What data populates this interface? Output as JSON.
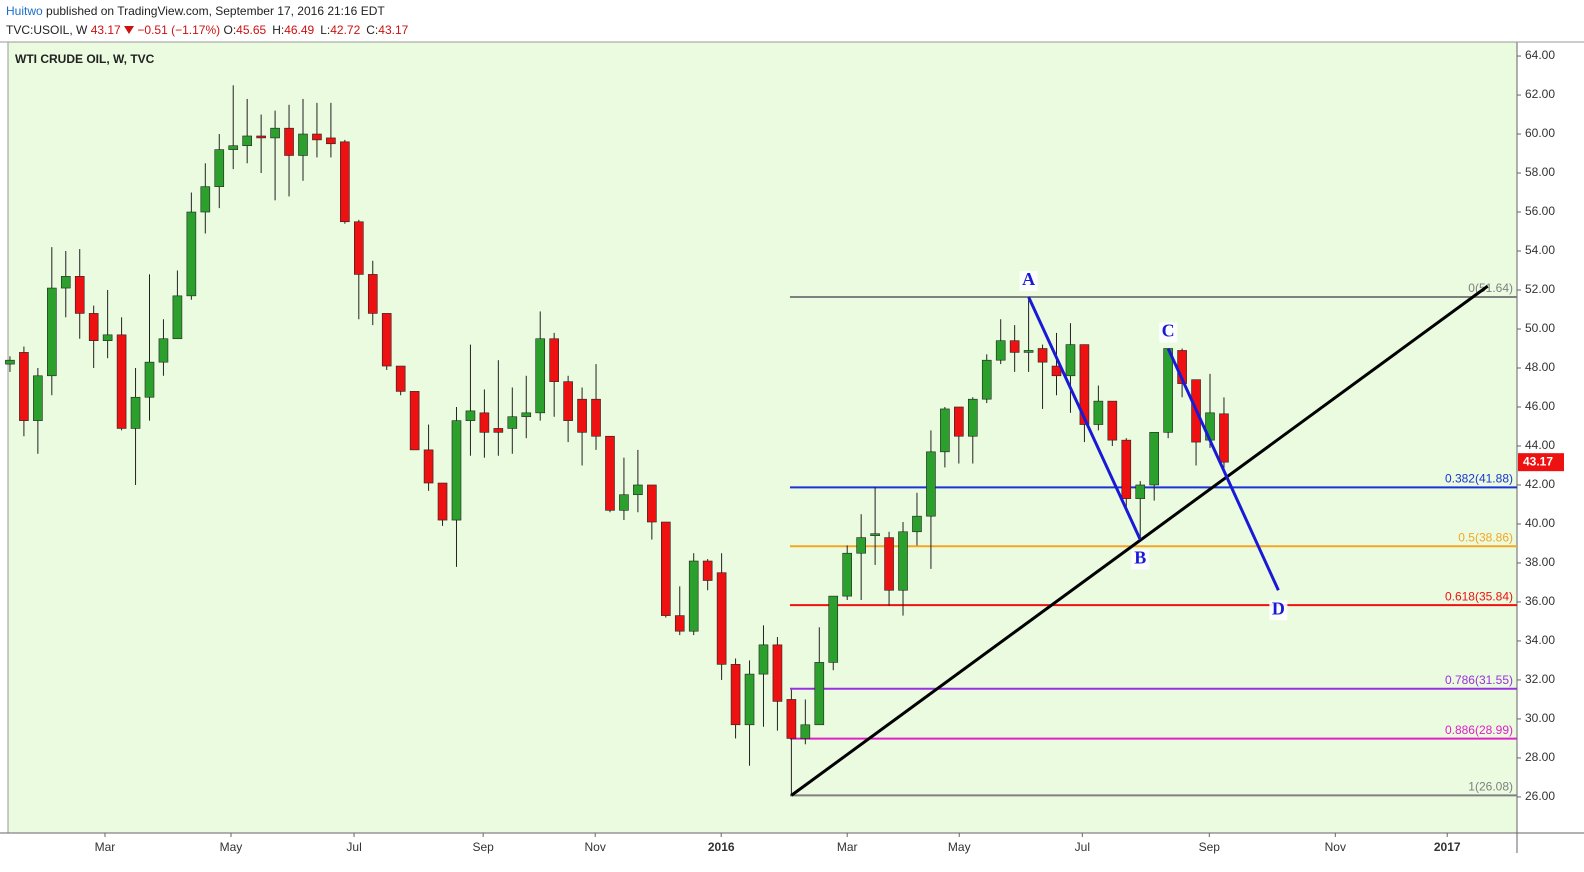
{
  "header": {
    "author": "Huitwo",
    "published": "published on TradingView.com, September 17, 2016 21:16 EDT",
    "symbol": "TVC:USOIL, W",
    "price": "43.17",
    "change": "−0.51 (−1.17%)",
    "ohlc": [
      {
        "label": "O:",
        "value": "45.65"
      },
      {
        "label": "H:",
        "value": "46.49"
      },
      {
        "label": "L:",
        "value": "42.72"
      },
      {
        "label": "C:",
        "value": "43.17"
      }
    ]
  },
  "chart_data": {
    "type": "candlestick",
    "title": "WTI CRUDE OIL, W, TVC",
    "up_color": "#2ca02c",
    "down_color": "#ee1111",
    "background": "#ebfbe0",
    "open": [
      48.2,
      48.8,
      45.3,
      47.6,
      52.1,
      52.7,
      50.8,
      49.4,
      49.7,
      44.9,
      46.5,
      48.3,
      49.5,
      51.7,
      56.0,
      57.3,
      59.2,
      59.4,
      59.9,
      59.8,
      60.3,
      58.9,
      60.0,
      59.8,
      59.6,
      55.5,
      52.8,
      50.8,
      48.1,
      46.8,
      43.8,
      42.1,
      40.2,
      45.3,
      45.7,
      44.9,
      44.9,
      45.5,
      45.7,
      49.5,
      47.3,
      46.4,
      46.4,
      44.5,
      40.7,
      41.5,
      42.0,
      40.1,
      35.3,
      34.5,
      38.1,
      37.5,
      32.8,
      29.7,
      32.3,
      33.8,
      31.0,
      29.0,
      29.7,
      32.9,
      36.3,
      38.5,
      39.4,
      39.3,
      36.6,
      39.6,
      40.4,
      43.7,
      46.0,
      44.5,
      46.4,
      48.4,
      49.4,
      48.8,
      49.0,
      48.1,
      47.6,
      49.2,
      45.1,
      46.3,
      44.3,
      41.3,
      42.0,
      44.7,
      48.9,
      47.4,
      44.3,
      45.65
    ],
    "high": [
      48.6,
      49.1,
      48.0,
      54.2,
      54.0,
      54.1,
      51.2,
      52.0,
      50.6,
      48.0,
      52.8,
      50.5,
      53.0,
      57.0,
      58.5,
      60.0,
      62.5,
      61.8,
      61.0,
      61.2,
      61.5,
      61.8,
      61.6,
      61.6,
      59.7,
      55.6,
      53.5,
      50.8,
      48.1,
      46.8,
      45.1,
      42.1,
      46.0,
      49.2,
      46.9,
      48.4,
      47.0,
      47.6,
      50.9,
      49.8,
      47.6,
      47.0,
      48.2,
      44.5,
      43.4,
      43.8,
      42.0,
      40.1,
      36.8,
      38.5,
      38.2,
      38.5,
      33.1,
      33.0,
      34.8,
      34.2,
      31.5,
      31.0,
      34.7,
      36.3,
      38.9,
      40.5,
      41.9,
      39.6,
      40.1,
      41.6,
      44.8,
      46.0,
      46.0,
      46.5,
      48.7,
      50.5,
      50.2,
      51.64,
      49.2,
      49.8,
      50.3,
      49.2,
      47.1,
      46.3,
      44.4,
      42.2,
      44.7,
      49.0,
      49.0,
      47.4,
      47.7,
      46.49
    ],
    "low": [
      47.8,
      44.5,
      43.6,
      46.6,
      50.6,
      49.5,
      48.0,
      48.5,
      44.8,
      42.0,
      45.3,
      47.6,
      49.5,
      51.5,
      54.9,
      56.2,
      58.2,
      58.5,
      58.0,
      56.6,
      56.8,
      57.6,
      58.8,
      58.8,
      55.4,
      50.5,
      50.2,
      47.9,
      46.6,
      43.8,
      41.7,
      39.9,
      37.8,
      43.5,
      43.4,
      43.5,
      43.6,
      44.4,
      45.3,
      45.5,
      44.2,
      43.0,
      43.8,
      40.6,
      40.2,
      40.6,
      39.2,
      35.2,
      34.3,
      34.3,
      36.6,
      32.0,
      29.0,
      27.6,
      29.6,
      29.4,
      26.08,
      28.7,
      29.7,
      32.5,
      36.1,
      36.1,
      37.9,
      35.8,
      35.3,
      38.9,
      37.7,
      42.9,
      43.1,
      43.1,
      46.2,
      48.2,
      47.8,
      47.8,
      45.9,
      46.6,
      45.7,
      44.2,
      44.8,
      44.0,
      40.8,
      39.2,
      41.2,
      44.4,
      46.5,
      43.0,
      43.9,
      42.72
    ],
    "close": [
      48.4,
      45.3,
      47.6,
      52.1,
      52.7,
      50.8,
      49.4,
      49.7,
      44.9,
      46.5,
      48.3,
      49.5,
      51.7,
      56.0,
      57.3,
      59.2,
      59.4,
      59.9,
      59.8,
      60.3,
      58.9,
      60.0,
      59.7,
      59.5,
      55.5,
      52.8,
      50.8,
      48.1,
      46.8,
      43.8,
      42.1,
      40.2,
      45.3,
      45.8,
      44.7,
      44.7,
      45.5,
      45.7,
      49.5,
      47.3,
      45.3,
      44.7,
      44.5,
      40.7,
      41.5,
      42.0,
      40.1,
      35.3,
      34.5,
      38.1,
      37.1,
      32.8,
      29.7,
      32.3,
      33.8,
      30.9,
      29.0,
      29.7,
      32.9,
      36.3,
      38.5,
      39.3,
      39.5,
      36.6,
      39.6,
      40.4,
      43.7,
      45.9,
      44.5,
      46.4,
      48.4,
      49.4,
      48.8,
      48.9,
      48.3,
      47.6,
      49.2,
      45.1,
      46.3,
      44.3,
      41.3,
      42.0,
      44.7,
      49.0,
      47.2,
      44.2,
      45.7,
      43.17
    ],
    "xlim": [
      -0.14,
      108.0
    ],
    "ylim": [
      24.15,
      64.72
    ],
    "xticks": [
      {
        "value": 6.81,
        "label": "Mar"
      },
      {
        "value": 15.84,
        "label": "May"
      },
      {
        "value": 24.66,
        "label": "Jul"
      },
      {
        "value": 33.91,
        "label": "Sep"
      },
      {
        "value": 41.94,
        "label": "Nov"
      },
      {
        "value": 50.97,
        "label": "2016"
      },
      {
        "value": 60.0,
        "label": "Mar"
      },
      {
        "value": 68.03,
        "label": "May"
      },
      {
        "value": 76.85,
        "label": "Jul"
      },
      {
        "value": 85.95,
        "label": "Sep"
      },
      {
        "value": 94.98,
        "label": "Nov"
      },
      {
        "value": 103.0,
        "label": "2017"
      }
    ],
    "yticks": [
      {
        "value": 26,
        "label": "26.00"
      },
      {
        "value": 28,
        "label": "28.00"
      },
      {
        "value": 30,
        "label": "30.00"
      },
      {
        "value": 32,
        "label": "32.00"
      },
      {
        "value": 34,
        "label": "34.00"
      },
      {
        "value": 36,
        "label": "36.00"
      },
      {
        "value": 38,
        "label": "38.00"
      },
      {
        "value": 40,
        "label": "40.00"
      },
      {
        "value": 42,
        "label": "42.00"
      },
      {
        "value": 44,
        "label": "44.00"
      },
      {
        "value": 46,
        "label": "46.00"
      },
      {
        "value": 48,
        "label": "48.00"
      },
      {
        "value": 50,
        "label": "50.00"
      },
      {
        "value": 52,
        "label": "52.00"
      },
      {
        "value": 54,
        "label": "54.00"
      },
      {
        "value": 56,
        "label": "56.00"
      },
      {
        "value": 58,
        "label": "58.00"
      },
      {
        "value": 60,
        "label": "60.00"
      },
      {
        "value": 62,
        "label": "62.00"
      },
      {
        "value": 64,
        "label": "64.00"
      }
    ],
    "last_price": {
      "value": 43.17,
      "label": "43.17"
    },
    "fib_start": 55.9,
    "fib_levels": [
      {
        "value": 51.64,
        "label": "0(51.64)",
        "color": "#808080"
      },
      {
        "value": 41.88,
        "label": "0.382(41.88)",
        "color": "#1a34d6"
      },
      {
        "value": 38.86,
        "label": "0.5(38.86)",
        "color": "#f5a623"
      },
      {
        "value": 35.84,
        "label": "0.618(35.84)",
        "color": "#ee1111"
      },
      {
        "value": 31.55,
        "label": "0.786(31.55)",
        "color": "#9b30e0"
      },
      {
        "value": 28.99,
        "label": "0.886(28.99)",
        "color": "#e020c8"
      },
      {
        "value": 26.08,
        "label": "1(26.08)",
        "color": "#808080"
      }
    ],
    "trendline": {
      "color": "#000000",
      "x": [
        56.0,
        105.9
      ],
      "y": [
        26.08,
        52.2
      ]
    },
    "pattern_color": "#1a1ad6",
    "pattern": [
      {
        "label": "A",
        "x": 73,
        "y": 51.64
      },
      {
        "label": "B",
        "x": 81,
        "y": 39.2
      },
      {
        "label": "C",
        "x": 83,
        "y": 49.0
      },
      {
        "label": "D",
        "x": 90.9,
        "y": 36.6
      }
    ]
  }
}
